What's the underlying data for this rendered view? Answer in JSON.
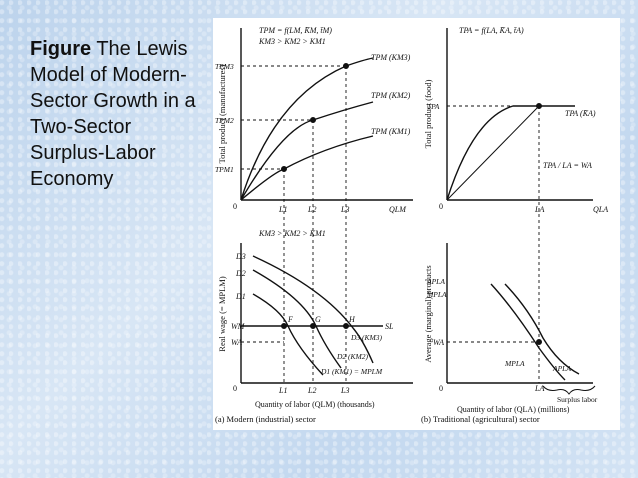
{
  "caption": {
    "bold": "Figure",
    "rest": " The Lewis Model of Modern-Sector Growth in a Two-Sector Surplus-Labor Economy"
  },
  "panel_a": {
    "caption": "(a) Modern (industrial) sector",
    "top": {
      "ylabel": "Total product (manufactures)",
      "eq1": "TPM = f(LM, K̄M, t̄M)",
      "eq2": "KM3 > KM2 > KM1",
      "curves": [
        "TPM (KM3)",
        "TPM (KM2)",
        "TPM (KM1)"
      ],
      "yticks": [
        "TPM3",
        "TPM2",
        "TPM1"
      ],
      "origin": "0",
      "xticks": [
        "L1",
        "L2",
        "L3"
      ],
      "xlabel": "QLM"
    },
    "bottom": {
      "ylabel": "Real wage (= MPLM)",
      "eq": "KM3 > KM2 > KM1",
      "ylabels": [
        "D3",
        "D2",
        "D1",
        "WM",
        "WA"
      ],
      "points": [
        "F",
        "G",
        "H"
      ],
      "supply": "SL",
      "curves": [
        "D3 (KM3)",
        "D2 (KM2)",
        "D1 (KM1) = MPLM"
      ],
      "origin": "0",
      "xticks": [
        "L1",
        "L2",
        "L3"
      ],
      "xlabel": "Quantity of labor (QLM) (thousands)"
    }
  },
  "panel_b": {
    "caption": "(b) Traditional (agricultural) sector",
    "top": {
      "ylabel": "Total product (food)",
      "eq": "TPA = f(LA, K̄A, t̄A)",
      "ytick": "TPA",
      "curve": "TPA (K̄A)",
      "ratio": "TPA / LA = WA",
      "origin": "0",
      "xtick": "LA",
      "xlabel": "QLA"
    },
    "bottom": {
      "ylabel": "Average (marginal) products",
      "ylabels": [
        "APLA",
        "MPLA",
        "WA"
      ],
      "curves": [
        "MPLA",
        "APLA"
      ],
      "brace": "Surplus labor",
      "origin": "0",
      "xtick": "LA",
      "xlabel": "Quantity of labor (QLA) (millions)"
    }
  }
}
